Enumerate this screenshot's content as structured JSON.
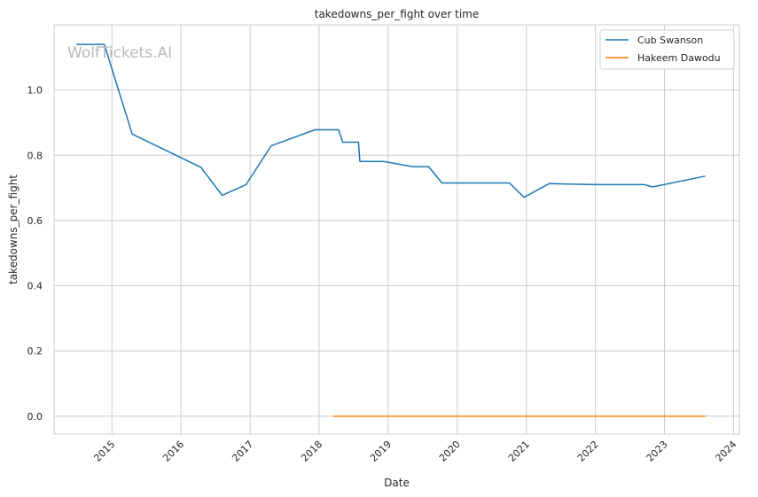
{
  "chart_data": {
    "type": "line",
    "title": "takedowns_per_fight over time",
    "xlabel": "Date",
    "ylabel": "takedowns_per_fight",
    "watermark": "WolfTickets.AI",
    "x_ticks": [
      "2015",
      "2016",
      "2017",
      "2018",
      "2019",
      "2020",
      "2021",
      "2022",
      "2023",
      "2024"
    ],
    "y_ticks": [
      "0.0",
      "0.2",
      "0.4",
      "0.6",
      "0.8",
      "1.0"
    ],
    "xlim": [
      "2014-03-01",
      "2024-02-01"
    ],
    "ylim": [
      -0.055,
      1.2
    ],
    "grid": true,
    "legend_position": "top-right",
    "series": [
      {
        "name": "Cub Swanson",
        "color": "#1f77b4",
        "points": [
          [
            "2014-06-28",
            1.14
          ],
          [
            "2014-11-22",
            1.14
          ],
          [
            "2015-04-18",
            0.865
          ],
          [
            "2016-04-16",
            0.763
          ],
          [
            "2016-08-06",
            0.677
          ],
          [
            "2016-12-10",
            0.71
          ],
          [
            "2017-04-22",
            0.829
          ],
          [
            "2017-12-09",
            0.878
          ],
          [
            "2018-04-14",
            0.878
          ],
          [
            "2018-05-05",
            0.84
          ],
          [
            "2018-07-28",
            0.84
          ],
          [
            "2018-08-04",
            0.781
          ],
          [
            "2018-12-08",
            0.781
          ],
          [
            "2019-05-11",
            0.765
          ],
          [
            "2019-08-03",
            0.765
          ],
          [
            "2019-10-12",
            0.715
          ],
          [
            "2020-10-03",
            0.715
          ],
          [
            "2020-12-19",
            0.671
          ],
          [
            "2021-05-01",
            0.713
          ],
          [
            "2022-01-01",
            0.71
          ],
          [
            "2022-09-17",
            0.71
          ],
          [
            "2022-10-29",
            0.703
          ],
          [
            "2023-08-05",
            0.736
          ]
        ]
      },
      {
        "name": "Hakeem Dawodu",
        "color": "#ff7f0e",
        "points": [
          [
            "2018-03-17",
            0.0
          ],
          [
            "2023-08-05",
            0.0
          ]
        ]
      }
    ]
  }
}
